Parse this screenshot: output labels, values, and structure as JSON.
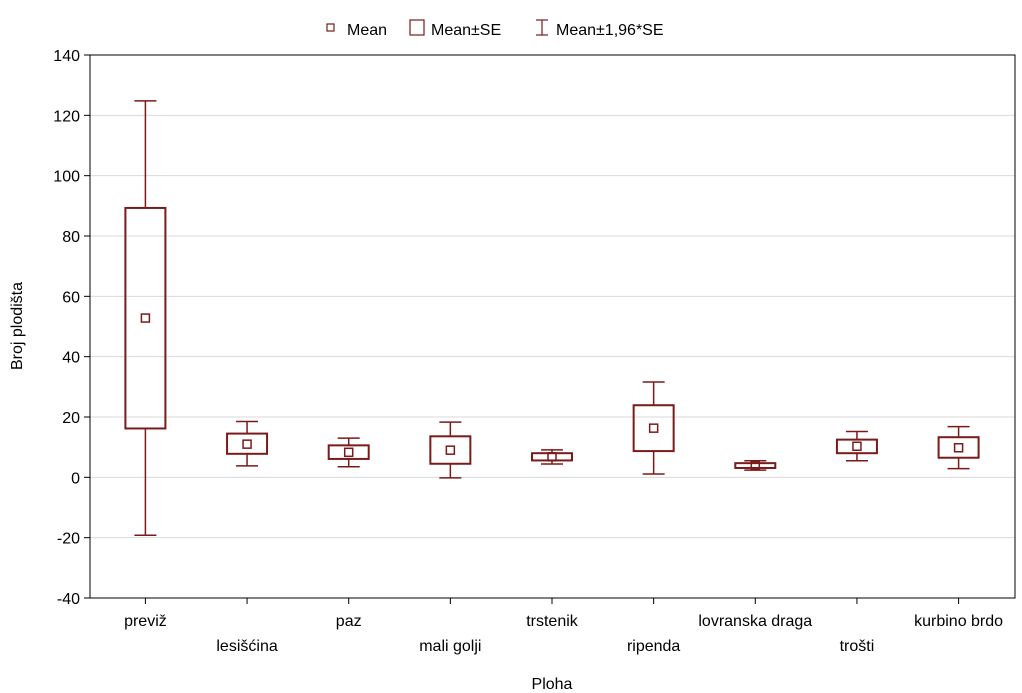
{
  "chart_data": {
    "type": "box",
    "title": "",
    "xlabel": "Ploha",
    "ylabel": "Broj plodišta",
    "ylim": [
      -40,
      140
    ],
    "yticks": [
      -40,
      -20,
      0,
      20,
      40,
      60,
      80,
      100,
      120,
      140
    ],
    "grid": "horizontal",
    "legend_position": "top-center",
    "legend": [
      "Mean",
      "Mean±SE",
      "Mean±1,96*SE"
    ],
    "categories": [
      "previž",
      "lesišćina",
      "paz",
      "mali golji",
      "trstenik",
      "ripenda",
      "lovranska draga",
      "trošti",
      "kurbino brdo"
    ],
    "series": [
      {
        "mean": [
          52.8,
          11.0,
          8.3,
          9.0,
          6.8,
          16.3,
          3.9,
          10.3,
          9.8
        ],
        "se_low": [
          16.2,
          7.8,
          6.1,
          4.5,
          5.6,
          8.7,
          3.1,
          8.0,
          6.5
        ],
        "se_high": [
          89.3,
          14.5,
          10.6,
          13.6,
          8.0,
          23.9,
          4.7,
          12.5,
          13.3
        ],
        "ci_low": [
          -19.2,
          3.8,
          3.5,
          -0.2,
          4.4,
          1.1,
          2.4,
          5.5,
          2.9
        ],
        "ci_high": [
          124.8,
          18.5,
          13.0,
          18.3,
          9.1,
          31.6,
          5.5,
          15.2,
          16.8
        ]
      }
    ],
    "colors": {
      "series": "#7a1a1a",
      "grid": "#d9d9d9",
      "axis": "#000000"
    }
  }
}
